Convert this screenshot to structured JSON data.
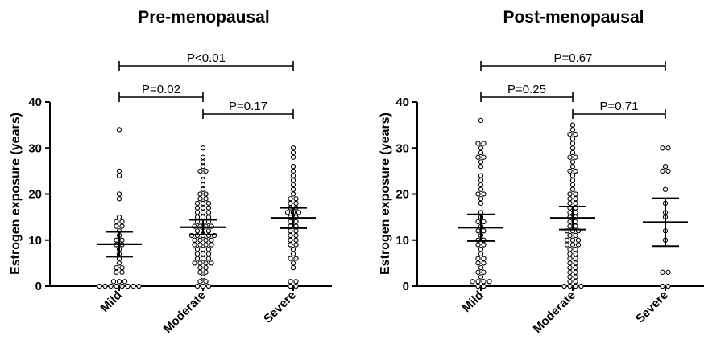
{
  "chart_data": [
    {
      "type": "scatter",
      "title": "Pre-menopausal",
      "ylabel": "Estrogen exposure (years)",
      "xlabel": "",
      "ylim": [
        0,
        40
      ],
      "yticks": [
        0,
        10,
        20,
        30,
        40
      ],
      "categories": [
        "Mild",
        "Moderate",
        "Severe"
      ],
      "series": [
        {
          "category": "Mild",
          "values": [
            0,
            0,
            0,
            0,
            0,
            0,
            0,
            0,
            1,
            1,
            1,
            3,
            3,
            4,
            4,
            5,
            6,
            7,
            8,
            9,
            9,
            10,
            10,
            11,
            12,
            13,
            13,
            14,
            14,
            15,
            19,
            20,
            24,
            25,
            34
          ],
          "mean": 9.1,
          "ci_low": 6.4,
          "ci_high": 11.8
        },
        {
          "category": "Moderate",
          "values": [
            0,
            0,
            0,
            1,
            1,
            2,
            3,
            3,
            4,
            4,
            5,
            5,
            5,
            5,
            6,
            6,
            6,
            7,
            7,
            7,
            8,
            8,
            8,
            9,
            9,
            9,
            9,
            10,
            10,
            10,
            10,
            11,
            11,
            11,
            11,
            11,
            12,
            12,
            12,
            13,
            13,
            13,
            13,
            14,
            14,
            14,
            15,
            15,
            15,
            16,
            16,
            16,
            17,
            17,
            17,
            18,
            18,
            18,
            19,
            19,
            20,
            20,
            21,
            22,
            23,
            24,
            25,
            25,
            26,
            27,
            28,
            30
          ],
          "mean": 12.8,
          "ci_low": 11.2,
          "ci_high": 14.4
        },
        {
          "category": "Severe",
          "values": [
            0,
            0,
            1,
            1,
            4,
            5,
            6,
            6,
            7,
            8,
            9,
            9,
            10,
            10,
            11,
            11,
            12,
            12,
            13,
            13,
            14,
            14,
            15,
            15,
            16,
            16,
            16,
            17,
            17,
            18,
            18,
            19,
            19,
            20,
            21,
            22,
            23,
            24,
            25,
            26,
            28,
            29,
            30
          ],
          "mean": 14.8,
          "ci_low": 12.6,
          "ci_high": 17.0
        }
      ],
      "comparisons": [
        {
          "from": "Mild",
          "to": "Moderate",
          "label": "P=0.02"
        },
        {
          "from": "Moderate",
          "to": "Severe",
          "label": "P=0.17"
        },
        {
          "from": "Mild",
          "to": "Severe",
          "label": "P<0.01"
        }
      ],
      "grid": false,
      "legend": "none"
    },
    {
      "type": "scatter",
      "title": "Post-menopausal",
      "ylabel": "Estrogen exposure (years)",
      "xlabel": "",
      "ylim": [
        0,
        40
      ],
      "yticks": [
        0,
        10,
        20,
        30,
        40
      ],
      "categories": [
        "Mild",
        "Moderate",
        "Severe"
      ],
      "series": [
        {
          "category": "Mild",
          "values": [
            0,
            0,
            1,
            1,
            1,
            1,
            2,
            3,
            3,
            4,
            5,
            5,
            6,
            6,
            7,
            8,
            9,
            9,
            10,
            10,
            11,
            12,
            12,
            13,
            14,
            14,
            15,
            16,
            18,
            19,
            20,
            20,
            21,
            22,
            23,
            24,
            26,
            27,
            28,
            28,
            29,
            30,
            31,
            31,
            36
          ],
          "mean": 12.7,
          "ci_low": 9.8,
          "ci_high": 15.6
        },
        {
          "category": "Moderate",
          "values": [
            0,
            0,
            0,
            0,
            1,
            1,
            2,
            2,
            3,
            3,
            4,
            4,
            5,
            5,
            6,
            6,
            7,
            7,
            8,
            8,
            9,
            9,
            9,
            10,
            10,
            10,
            11,
            11,
            12,
            12,
            12,
            13,
            13,
            14,
            14,
            15,
            15,
            16,
            16,
            17,
            17,
            18,
            18,
            19,
            19,
            20,
            20,
            21,
            22,
            23,
            24,
            25,
            25,
            26,
            27,
            28,
            28,
            29,
            30,
            31,
            32,
            33,
            33,
            34,
            35
          ],
          "mean": 14.8,
          "ci_low": 12.3,
          "ci_high": 17.3
        },
        {
          "category": "Severe",
          "values": [
            0,
            0,
            3,
            3,
            10,
            12,
            15,
            16,
            18,
            21,
            25,
            25,
            26,
            30,
            30
          ],
          "mean": 13.9,
          "ci_low": 8.7,
          "ci_high": 19.1
        }
      ],
      "comparisons": [
        {
          "from": "Mild",
          "to": "Moderate",
          "label": "P=0.25"
        },
        {
          "from": "Moderate",
          "to": "Severe",
          "label": "P=0.71"
        },
        {
          "from": "Mild",
          "to": "Severe",
          "label": "P=0.67"
        }
      ],
      "grid": false,
      "legend": "none"
    }
  ]
}
